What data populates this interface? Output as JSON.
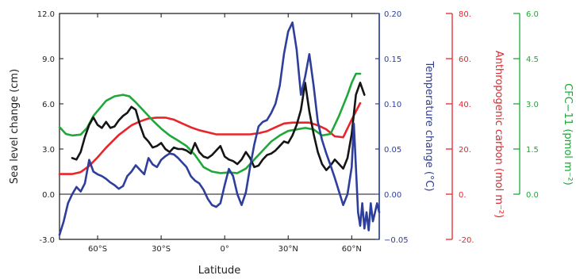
{
  "chart_data": {
    "type": "line",
    "xlabel": "Latitude",
    "x_range": [
      -78,
      73
    ],
    "x_ticks": [
      {
        "value": -60,
        "label": "60°S"
      },
      {
        "value": -30,
        "label": "30°S"
      },
      {
        "value": 0,
        "label": "0°"
      },
      {
        "value": 30,
        "label": "30°N"
      },
      {
        "value": 60,
        "label": "60°N"
      }
    ],
    "axes": [
      {
        "id": "sea",
        "label": "Sea level change (cm)",
        "color": "#333333",
        "side": "left",
        "range": [
          -3.0,
          12.0
        ],
        "ticks": [
          {
            "value": -3.0,
            "label": "-3.0"
          },
          {
            "value": 0.0,
            "label": "0.0"
          },
          {
            "value": 3.0,
            "label": "3.0"
          },
          {
            "value": 6.0,
            "label": "6.0"
          },
          {
            "value": 9.0,
            "label": "9.0"
          },
          {
            "value": 12.0,
            "label": "12.0"
          }
        ]
      },
      {
        "id": "temp",
        "label": "Temperature change (°C)",
        "color": "#2e3e9c",
        "side": "right",
        "range": [
          -0.05,
          0.2
        ],
        "ticks": [
          {
            "value": -0.05,
            "label": "−0.05"
          },
          {
            "value": 0.0,
            "label": "0.00"
          },
          {
            "value": 0.05,
            "label": "0.05"
          },
          {
            "value": 0.1,
            "label": "0.10"
          },
          {
            "value": 0.15,
            "label": "0.15"
          },
          {
            "value": 0.2,
            "label": "0.20"
          }
        ]
      },
      {
        "id": "carbon",
        "label": "Anthropogenic carbon (mol m⁻²)",
        "color": "#e8252a",
        "side": "right-offset-1",
        "range": [
          -20,
          80
        ],
        "ticks": [
          {
            "value": -20,
            "label": "-20."
          },
          {
            "value": 0,
            "label": "0."
          },
          {
            "value": 20,
            "label": "20."
          },
          {
            "value": 40,
            "label": "40."
          },
          {
            "value": 60,
            "label": "60."
          },
          {
            "value": 80,
            "label": "80."
          }
        ]
      },
      {
        "id": "cfc",
        "label": "CFC−11 (pmol m⁻²)",
        "color": "#1fa83a",
        "side": "right-offset-2",
        "range": [
          -1.5,
          6.0
        ],
        "ticks": [
          {
            "value": 0.0,
            "label": "0.0"
          },
          {
            "value": 1.5,
            "label": "1.5"
          },
          {
            "value": 3.0,
            "label": "3.0"
          },
          {
            "value": 4.5,
            "label": "4.5"
          },
          {
            "value": 6.0,
            "label": "6.0"
          }
        ]
      }
    ],
    "series": [
      {
        "axis": "carbon",
        "color": "#e8252a",
        "x": [
          -78,
          -72,
          -68,
          -64,
          -60,
          -56,
          -50,
          -44,
          -40,
          -36,
          -32,
          -28,
          -24,
          -20,
          -16,
          -12,
          -8,
          -4,
          0,
          4,
          8,
          12,
          16,
          20,
          24,
          28,
          32,
          36,
          40,
          44,
          48,
          52,
          56,
          60,
          64
        ],
        "y": [
          8.9,
          8.9,
          9.8,
          12.5,
          16.3,
          20.6,
          26.2,
          30.5,
          32.2,
          33.5,
          33.9,
          33.9,
          33.0,
          31.3,
          29.6,
          28.3,
          27.4,
          26.5,
          26.5,
          26.5,
          26.5,
          26.5,
          27.0,
          27.9,
          29.6,
          31.3,
          31.7,
          31.7,
          31.7,
          30.5,
          28.7,
          25.6,
          25.2,
          33.0,
          40.3
        ]
      },
      {
        "axis": "cfc",
        "color": "#1fa83a",
        "x": [
          -78,
          -75,
          -72,
          -68,
          -65,
          -62,
          -59,
          -56,
          -52,
          -48,
          -45,
          -42,
          -38,
          -34,
          -30,
          -26,
          -22,
          -18,
          -14,
          -10,
          -6,
          -2,
          2,
          6,
          10,
          14,
          18,
          22,
          26,
          30,
          34,
          38,
          42,
          46,
          50,
          54,
          58,
          60,
          62,
          64
        ],
        "y": [
          2.23,
          2.0,
          1.95,
          1.98,
          2.2,
          2.6,
          2.85,
          3.1,
          3.25,
          3.3,
          3.25,
          3.05,
          2.75,
          2.45,
          2.18,
          1.95,
          1.78,
          1.6,
          1.3,
          0.9,
          0.75,
          0.7,
          0.72,
          0.7,
          0.85,
          1.15,
          1.45,
          1.75,
          1.95,
          2.1,
          2.15,
          2.2,
          2.15,
          1.95,
          2.0,
          2.6,
          3.3,
          3.7,
          4.0,
          4.0
        ]
      },
      {
        "axis": "sea",
        "color": "#151515",
        "x": [
          -72,
          -70,
          -68,
          -66,
          -64,
          -62,
          -60,
          -58,
          -56,
          -54,
          -52,
          -50,
          -48,
          -46,
          -44,
          -42,
          -40,
          -38,
          -36,
          -34,
          -32,
          -30,
          -28,
          -26,
          -24,
          -22,
          -20,
          -18,
          -16,
          -14,
          -12,
          -10,
          -8,
          -6,
          -4,
          -2,
          0,
          2,
          4,
          6,
          8,
          10,
          12,
          14,
          16,
          18,
          20,
          22,
          24,
          26,
          28,
          30,
          32,
          34,
          36,
          38,
          40,
          42,
          44,
          46,
          48,
          50,
          52,
          54,
          56,
          58,
          60,
          62,
          64,
          66
        ],
        "y": [
          2.4,
          2.3,
          2.8,
          3.8,
          4.6,
          5.1,
          4.6,
          4.4,
          4.8,
          4.4,
          4.5,
          4.9,
          5.2,
          5.4,
          5.8,
          5.6,
          4.6,
          3.8,
          3.5,
          3.1,
          3.2,
          3.4,
          3.0,
          2.8,
          3.1,
          3.0,
          3.0,
          2.9,
          2.7,
          3.4,
          2.8,
          2.5,
          2.4,
          2.6,
          2.9,
          3.2,
          2.5,
          2.3,
          2.2,
          2.0,
          2.3,
          2.8,
          2.4,
          1.8,
          1.9,
          2.3,
          2.6,
          2.7,
          2.9,
          3.2,
          3.5,
          3.4,
          3.9,
          4.6,
          5.6,
          7.4,
          5.5,
          4.0,
          2.8,
          2.0,
          1.6,
          1.9,
          2.3,
          2.0,
          1.7,
          2.4,
          4.0,
          6.6,
          7.4,
          6.6
        ]
      },
      {
        "axis": "temp",
        "color": "#2e3e9c",
        "x": [
          -78,
          -76,
          -74,
          -72,
          -70,
          -68,
          -66,
          -64,
          -62,
          -60,
          -58,
          -56,
          -54,
          -52,
          -50,
          -48,
          -46,
          -44,
          -42,
          -40,
          -38,
          -36,
          -34,
          -32,
          -30,
          -28,
          -26,
          -24,
          -22,
          -20,
          -18,
          -16,
          -14,
          -12,
          -10,
          -8,
          -6,
          -4,
          -2,
          0,
          2,
          4,
          6,
          8,
          10,
          12,
          14,
          16,
          18,
          20,
          22,
          24,
          26,
          28,
          30,
          32,
          34,
          36,
          38,
          40,
          42,
          44,
          46,
          48,
          50,
          52,
          54,
          56,
          58,
          60,
          61,
          62,
          63,
          64,
          65,
          66,
          67,
          68,
          69,
          70,
          71,
          72,
          73
        ],
        "y": [
          -0.045,
          -0.03,
          -0.01,
          0.0,
          0.008,
          0.003,
          0.012,
          0.038,
          0.025,
          0.022,
          0.02,
          0.017,
          0.013,
          0.01,
          0.006,
          0.009,
          0.02,
          0.025,
          0.032,
          0.027,
          0.022,
          0.04,
          0.033,
          0.03,
          0.038,
          0.042,
          0.045,
          0.044,
          0.04,
          0.035,
          0.03,
          0.02,
          0.015,
          0.012,
          0.005,
          -0.005,
          -0.012,
          -0.014,
          -0.01,
          0.01,
          0.028,
          0.02,
          0.0,
          -0.012,
          0.002,
          0.03,
          0.055,
          0.075,
          0.08,
          0.082,
          0.09,
          0.1,
          0.12,
          0.155,
          0.18,
          0.19,
          0.16,
          0.11,
          0.13,
          0.155,
          0.12,
          0.08,
          0.06,
          0.045,
          0.032,
          0.018,
          0.003,
          -0.012,
          0.0,
          0.03,
          0.078,
          0.03,
          -0.02,
          -0.035,
          -0.01,
          -0.038,
          -0.02,
          -0.04,
          -0.01,
          -0.03,
          -0.02,
          -0.01,
          -0.02
        ]
      }
    ]
  }
}
